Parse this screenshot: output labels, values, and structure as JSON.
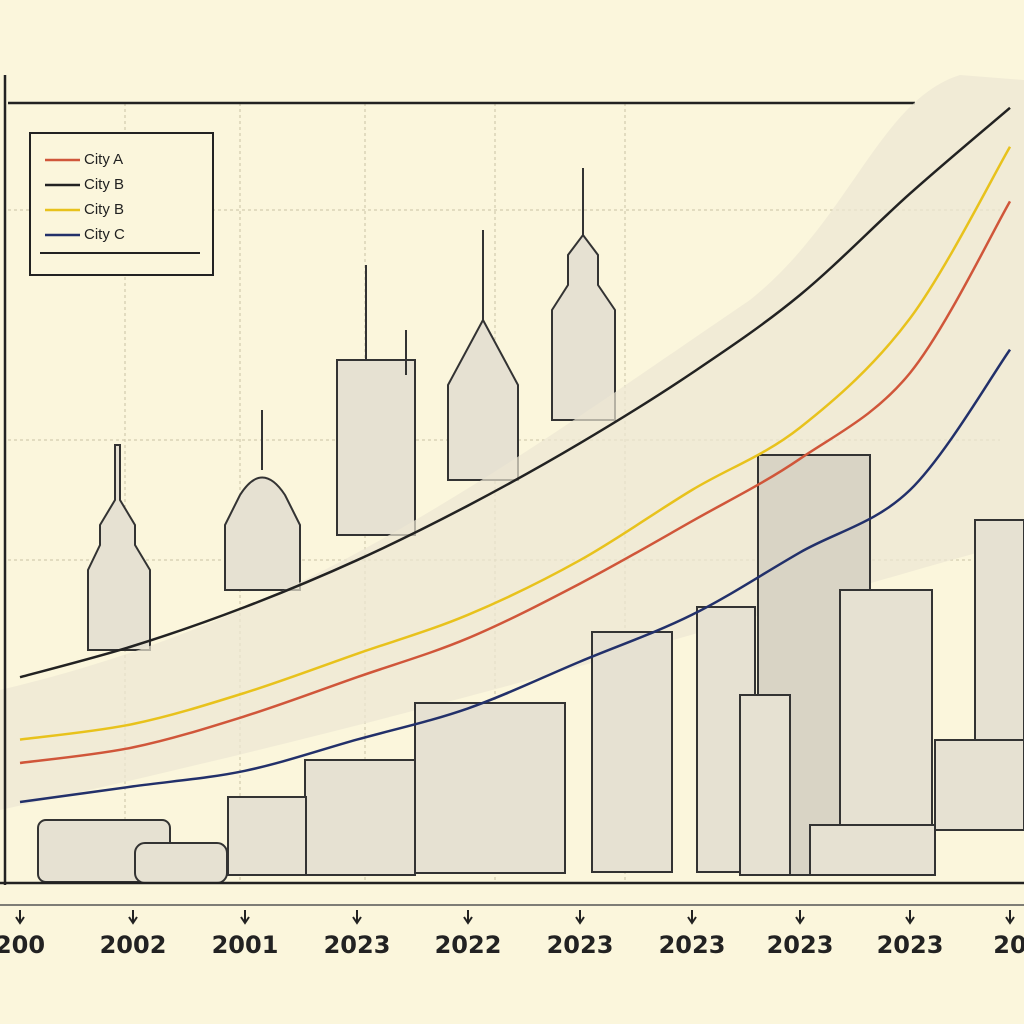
{
  "chart_data": {
    "type": "line",
    "categories": [
      "200",
      "2002",
      "2001",
      "2023",
      "2022",
      "2023",
      "2023",
      "2023",
      "2023",
      "20"
    ],
    "series": [
      {
        "name": "City A",
        "color": "#d0563a",
        "values": [
          15,
          17,
          21,
          26,
          31,
          38,
          46,
          54,
          65,
          87
        ]
      },
      {
        "name": "City B",
        "color": "#222222",
        "values": [
          26,
          30,
          35,
          41,
          48,
          56,
          65,
          75,
          88,
          99
        ]
      },
      {
        "name": "City B",
        "color": "#e8c21c",
        "values": [
          18,
          20,
          24,
          29,
          34,
          41,
          50,
          58,
          72,
          94
        ]
      },
      {
        "name": "City C",
        "color": "#22306a",
        "values": [
          10,
          12,
          14,
          18,
          22,
          28,
          34,
          42,
          50,
          68
        ]
      }
    ],
    "ylim": [
      0,
      100
    ],
    "grid": true
  }
}
